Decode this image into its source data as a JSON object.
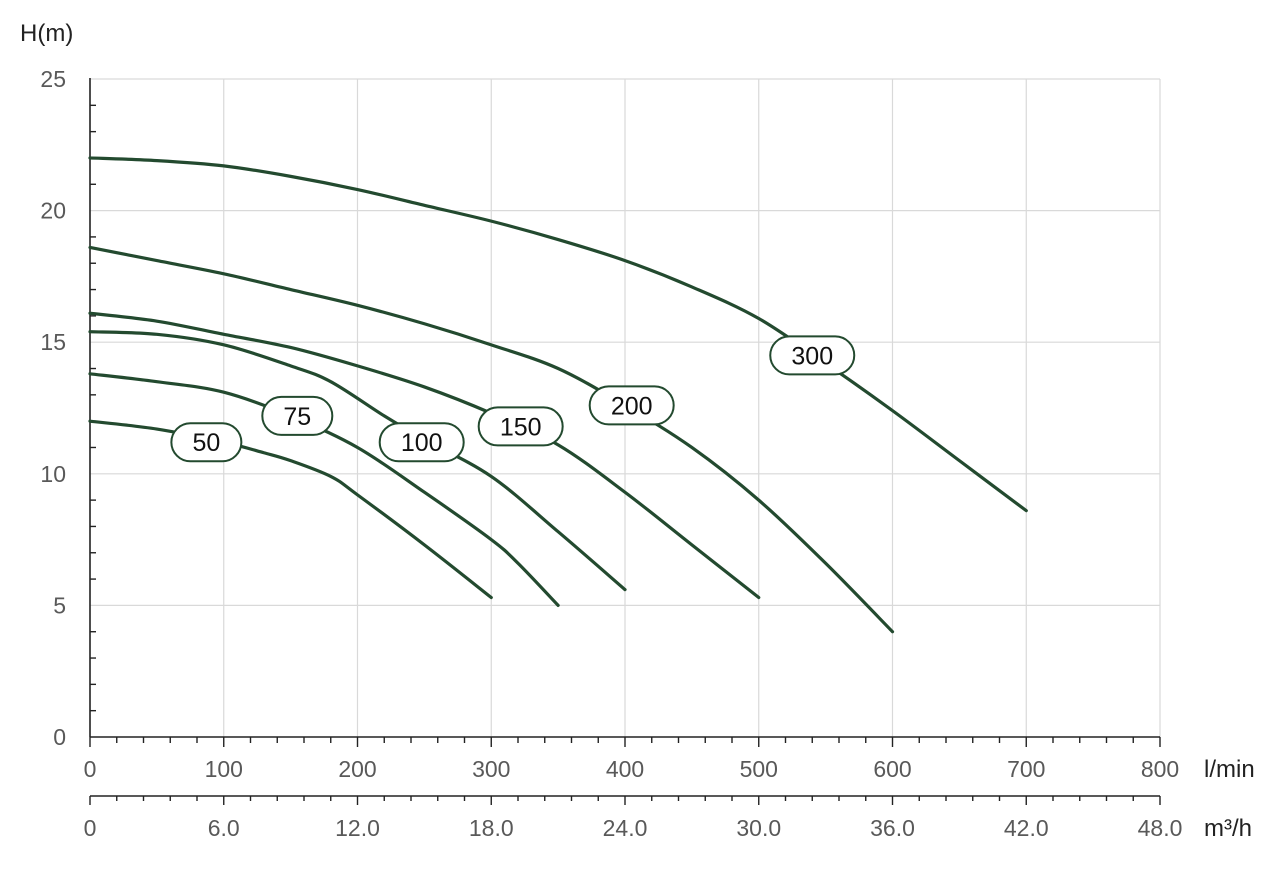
{
  "chart_data": {
    "type": "line",
    "ylabel": "H(m)",
    "xlabel": "l/min",
    "x2label": "m³/h",
    "xlim": [
      0,
      800
    ],
    "ylim": [
      0,
      25
    ],
    "x_ticks": [
      0,
      100,
      200,
      300,
      400,
      500,
      600,
      700,
      800
    ],
    "x_tick_labels": [
      "0",
      "100",
      "200",
      "300",
      "400",
      "500",
      "600",
      "700",
      "800"
    ],
    "y_ticks": [
      0,
      5,
      10,
      15,
      20,
      25
    ],
    "y_tick_labels": [
      "0",
      "5",
      "10",
      "15",
      "20",
      "25"
    ],
    "x2_ticks": [
      0,
      6,
      12,
      18,
      24,
      30,
      36,
      42,
      48
    ],
    "x2_tick_labels": [
      "0",
      "6.0",
      "12.0",
      "18.0",
      "24.0",
      "30.0",
      "36.0",
      "42.0",
      "48.0"
    ],
    "grid": true,
    "line_color": "#234a2f",
    "series": [
      {
        "name": "50",
        "label_at": [
          87,
          11.2
        ],
        "x": [
          0,
          50,
          100,
          130,
          150,
          180,
          200,
          250,
          300
        ],
        "y": [
          12.0,
          11.7,
          11.2,
          10.8,
          10.5,
          9.9,
          9.2,
          7.3,
          5.3
        ]
      },
      {
        "name": "75",
        "label_at": [
          155,
          12.2
        ],
        "x": [
          0,
          50,
          100,
          150,
          200,
          250,
          300,
          320,
          350
        ],
        "y": [
          13.8,
          13.5,
          13.1,
          12.2,
          11.0,
          9.3,
          7.5,
          6.6,
          5.0
        ]
      },
      {
        "name": "100",
        "label_at": [
          248,
          11.2
        ],
        "x": [
          0,
          50,
          100,
          150,
          180,
          220,
          250,
          300,
          350,
          400
        ],
        "y": [
          15.4,
          15.3,
          14.9,
          14.1,
          13.5,
          12.2,
          11.3,
          9.9,
          7.8,
          5.6
        ]
      },
      {
        "name": "150",
        "label_at": [
          322,
          11.8
        ],
        "x": [
          0,
          50,
          100,
          150,
          200,
          250,
          300,
          350,
          400,
          450,
          500
        ],
        "y": [
          16.1,
          15.8,
          15.3,
          14.8,
          14.1,
          13.3,
          12.3,
          11.1,
          9.3,
          7.3,
          5.3
        ]
      },
      {
        "name": "200",
        "label_at": [
          405,
          12.6
        ],
        "x": [
          0,
          50,
          100,
          150,
          200,
          250,
          300,
          350,
          400,
          450,
          500,
          550,
          600
        ],
        "y": [
          18.6,
          18.1,
          17.6,
          17.0,
          16.4,
          15.7,
          14.9,
          14.0,
          12.6,
          11.0,
          9.0,
          6.6,
          4.0
        ]
      },
      {
        "name": "300",
        "label_at": [
          540,
          14.5
        ],
        "x": [
          0,
          50,
          100,
          150,
          200,
          250,
          300,
          350,
          400,
          450,
          500,
          550,
          600,
          650,
          700
        ],
        "y": [
          22.0,
          21.9,
          21.7,
          21.3,
          20.8,
          20.2,
          19.6,
          18.9,
          18.1,
          17.1,
          15.9,
          14.2,
          12.4,
          10.5,
          8.6
        ]
      }
    ]
  }
}
